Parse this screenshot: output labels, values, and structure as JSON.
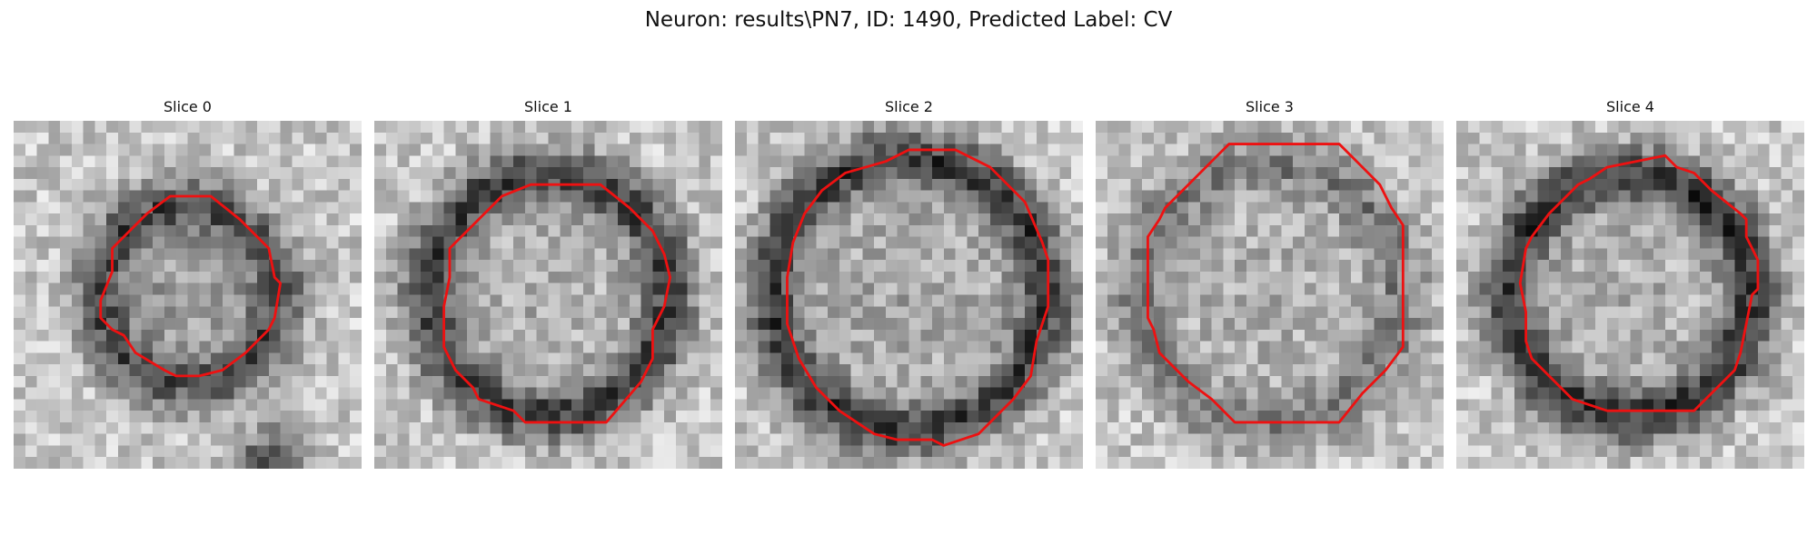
{
  "figure": {
    "title": "Neuron: results\\PN7, ID: 1490, Predicted Label: CV"
  },
  "grid_cells": 30,
  "contour_color": "#ee1111",
  "slices": [
    {
      "label": "Slice 0",
      "seed": 11,
      "radius": 8.0,
      "rim_darkness": 0.42,
      "center_darkness": 0.12,
      "center": [
        15,
        15
      ],
      "extra_blob": {
        "x": 22,
        "y": 30,
        "r": 5,
        "d": 0.55
      },
      "contour": [
        [
          13.5,
          6.5
        ],
        [
          17,
          6.5
        ],
        [
          19.5,
          8.5
        ],
        [
          22,
          11
        ],
        [
          22.5,
          13.5
        ],
        [
          23,
          14
        ],
        [
          22.5,
          17
        ],
        [
          22,
          18
        ],
        [
          20,
          20
        ],
        [
          18,
          21.5
        ],
        [
          16,
          22
        ],
        [
          14,
          22
        ],
        [
          13,
          21.5
        ],
        [
          10.5,
          20
        ],
        [
          9.5,
          18.5
        ],
        [
          8.5,
          18
        ],
        [
          7.5,
          17
        ],
        [
          7.5,
          15.5
        ],
        [
          8.5,
          13
        ],
        [
          8.5,
          11
        ],
        [
          10,
          9.5
        ],
        [
          11.5,
          8
        ]
      ]
    },
    {
      "label": "Slice 1",
      "seed": 23,
      "radius": 10.5,
      "rim_darkness": 0.5,
      "center_darkness": 0.05,
      "center": [
        15,
        15
      ],
      "extra_blob": null,
      "contour": [
        [
          13.5,
          5.5
        ],
        [
          19.5,
          5.5
        ],
        [
          22,
          7.5
        ],
        [
          24,
          9.5
        ],
        [
          25,
          11.5
        ],
        [
          25.5,
          13.5
        ],
        [
          25,
          16
        ],
        [
          24,
          18
        ],
        [
          24,
          20.5
        ],
        [
          23,
          22.5
        ],
        [
          20,
          26
        ],
        [
          13,
          26
        ],
        [
          12,
          25
        ],
        [
          9,
          24
        ],
        [
          8.5,
          23
        ],
        [
          7,
          21.5
        ],
        [
          6,
          19.5
        ],
        [
          6,
          16
        ],
        [
          6.5,
          13.5
        ],
        [
          6.5,
          11
        ],
        [
          7,
          10.5
        ],
        [
          10,
          7.5
        ],
        [
          11,
          6.5
        ]
      ]
    },
    {
      "label": "Slice 2",
      "seed": 37,
      "radius": 12.0,
      "rim_darkness": 0.5,
      "center_darkness": 0.08,
      "center": [
        15,
        15
      ],
      "extra_blob": null,
      "contour": [
        [
          13,
          3.5
        ],
        [
          15,
          2.5
        ],
        [
          19,
          2.5
        ],
        [
          22,
          4
        ],
        [
          25,
          7
        ],
        [
          26.5,
          10.5
        ],
        [
          27,
          12
        ],
        [
          27,
          16
        ],
        [
          26,
          19
        ],
        [
          25.5,
          22
        ],
        [
          24,
          24
        ],
        [
          21,
          27
        ],
        [
          18,
          28
        ],
        [
          17,
          27.5
        ],
        [
          14,
          27.5
        ],
        [
          12,
          27
        ],
        [
          9,
          25
        ],
        [
          7,
          23
        ],
        [
          5.5,
          20.5
        ],
        [
          5,
          19
        ],
        [
          4.5,
          17.5
        ],
        [
          4.5,
          13.5
        ],
        [
          5,
          10.5
        ],
        [
          6,
          8
        ],
        [
          7.5,
          6
        ],
        [
          9.5,
          4.5
        ]
      ]
    },
    {
      "label": "Slice 3",
      "seed": 53,
      "radius": 11.5,
      "rim_darkness": 0.28,
      "center_darkness": 0.05,
      "center": [
        15,
        15
      ],
      "extra_blob": null,
      "contour": [
        [
          11.5,
          2
        ],
        [
          21,
          2
        ],
        [
          22,
          3
        ],
        [
          23,
          4
        ],
        [
          24.5,
          5.5
        ],
        [
          25.5,
          7.5
        ],
        [
          26.5,
          9
        ],
        [
          26.5,
          19.5
        ],
        [
          25,
          21.5
        ],
        [
          23,
          23.5
        ],
        [
          21,
          26
        ],
        [
          12,
          26
        ],
        [
          10,
          24
        ],
        [
          8,
          22.5
        ],
        [
          5.5,
          20
        ],
        [
          5,
          18
        ],
        [
          4.5,
          17
        ],
        [
          4.5,
          10
        ],
        [
          5.5,
          8.5
        ],
        [
          6,
          7.5
        ],
        [
          8,
          5.5
        ],
        [
          10,
          3.5
        ]
      ]
    },
    {
      "label": "Slice 4",
      "seed": 71,
      "radius": 10.5,
      "rim_darkness": 0.55,
      "center_darkness": 0.05,
      "center": [
        15,
        15
      ],
      "extra_blob": null,
      "contour": [
        [
          13,
          4
        ],
        [
          18,
          3
        ],
        [
          19,
          4
        ],
        [
          20.5,
          4.5
        ],
        [
          22,
          6
        ],
        [
          24.5,
          8
        ],
        [
          25,
          8.5
        ],
        [
          25,
          10
        ],
        [
          26,
          12
        ],
        [
          26,
          14.5
        ],
        [
          25.5,
          15
        ],
        [
          25,
          17.5
        ],
        [
          24.5,
          20
        ],
        [
          24,
          21.5
        ],
        [
          22.5,
          23
        ],
        [
          20.5,
          25
        ],
        [
          13,
          25
        ],
        [
          10,
          24
        ],
        [
          9.5,
          23.5
        ],
        [
          8,
          22
        ],
        [
          6.5,
          20.5
        ],
        [
          6,
          19
        ],
        [
          6,
          16.5
        ],
        [
          5.5,
          14
        ],
        [
          6,
          11
        ],
        [
          6.5,
          10
        ],
        [
          8,
          8
        ],
        [
          10.5,
          5.5
        ],
        [
          11.5,
          5
        ]
      ]
    }
  ]
}
